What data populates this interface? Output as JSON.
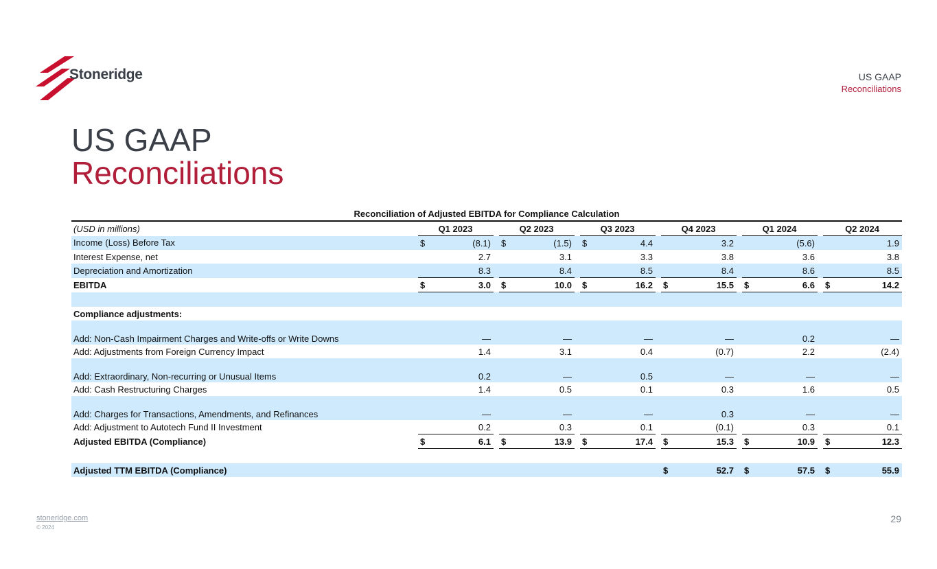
{
  "brand": {
    "logo_text": "Stoneridge",
    "accent_color": "#b01e3a",
    "dark_color": "#3a3f48",
    "row_shade_color": "#cfeafd"
  },
  "header": {
    "section_line1": "US GAAP",
    "section_line2": "Reconciliations"
  },
  "title": {
    "line1": "US GAAP",
    "line2": "Reconciliations"
  },
  "table": {
    "caption": "Reconciliation of Adjusted EBITDA for Compliance Calculation",
    "units_label": "(USD in millions)",
    "columns": [
      "Q1 2023",
      "Q2 2023",
      "Q3 2023",
      "Q4 2023",
      "Q1 2024",
      "Q2 2024"
    ],
    "rows": [
      {
        "label": "Income (Loss) Before Tax",
        "currency": [
          "$",
          "$",
          "$",
          "",
          "",
          ""
        ],
        "values": [
          "(8.1)",
          "(1.5)",
          "4.4",
          "3.2",
          "(5.6)",
          "1.9"
        ]
      },
      {
        "label": "Interest Expense, net",
        "currency": [
          "",
          "",
          "",
          "",
          "",
          ""
        ],
        "values": [
          "2.7",
          "3.1",
          "3.3",
          "3.8",
          "3.6",
          "3.8"
        ]
      },
      {
        "label": "Depreciation and Amortization",
        "currency": [
          "",
          "",
          "",
          "",
          "",
          ""
        ],
        "values": [
          "8.3",
          "8.4",
          "8.5",
          "8.4",
          "8.6",
          "8.5"
        ]
      },
      {
        "label": "EBITDA",
        "currency": [
          "$",
          "$",
          "$",
          "$",
          "$",
          "$"
        ],
        "values": [
          "3.0",
          "10.0",
          "16.2",
          "15.5",
          "6.6",
          "14.2"
        ]
      },
      {
        "label": "Compliance adjustments:"
      },
      {
        "label": "Add: Non-Cash Impairment Charges and Write-offs or Write Downs",
        "values": [
          "—",
          "—",
          "—",
          "—",
          "0.2",
          "—"
        ]
      },
      {
        "label": "Add: Adjustments from Foreign Currency Impact",
        "values": [
          "1.4",
          "3.1",
          "0.4",
          "(0.7)",
          "2.2",
          "(2.4)"
        ]
      },
      {
        "label": "Add: Extraordinary, Non-recurring or Unusual Items",
        "values": [
          "0.2",
          "—",
          "0.5",
          "—",
          "—",
          "—"
        ]
      },
      {
        "label": "Add: Cash Restructuring Charges",
        "values": [
          "1.4",
          "0.5",
          "0.1",
          "0.3",
          "1.6",
          "0.5"
        ]
      },
      {
        "label": "Add: Charges for Transactions, Amendments, and Refinances",
        "values": [
          "—",
          "—",
          "—",
          "0.3",
          "—",
          "—"
        ]
      },
      {
        "label": "Add: Adjustment to Autotech Fund II Investment",
        "values": [
          "0.2",
          "0.3",
          "0.1",
          "(0.1)",
          "0.3",
          "0.1"
        ]
      },
      {
        "label": "Adjusted EBITDA (Compliance)",
        "currency": [
          "$",
          "$",
          "$",
          "$",
          "$",
          "$"
        ],
        "values": [
          "6.1",
          "13.9",
          "17.4",
          "15.3",
          "10.9",
          "12.3"
        ]
      },
      {
        "label": "Adjusted TTM EBITDA (Compliance)",
        "currency": [
          "",
          "",
          "",
          "$",
          "$",
          "$"
        ],
        "values": [
          "",
          "",
          "",
          "52.7",
          "57.5",
          "55.9"
        ]
      }
    ]
  },
  "footer": {
    "link": "stoneridge.com",
    "copyright": "© 2024",
    "page_number": "29"
  }
}
